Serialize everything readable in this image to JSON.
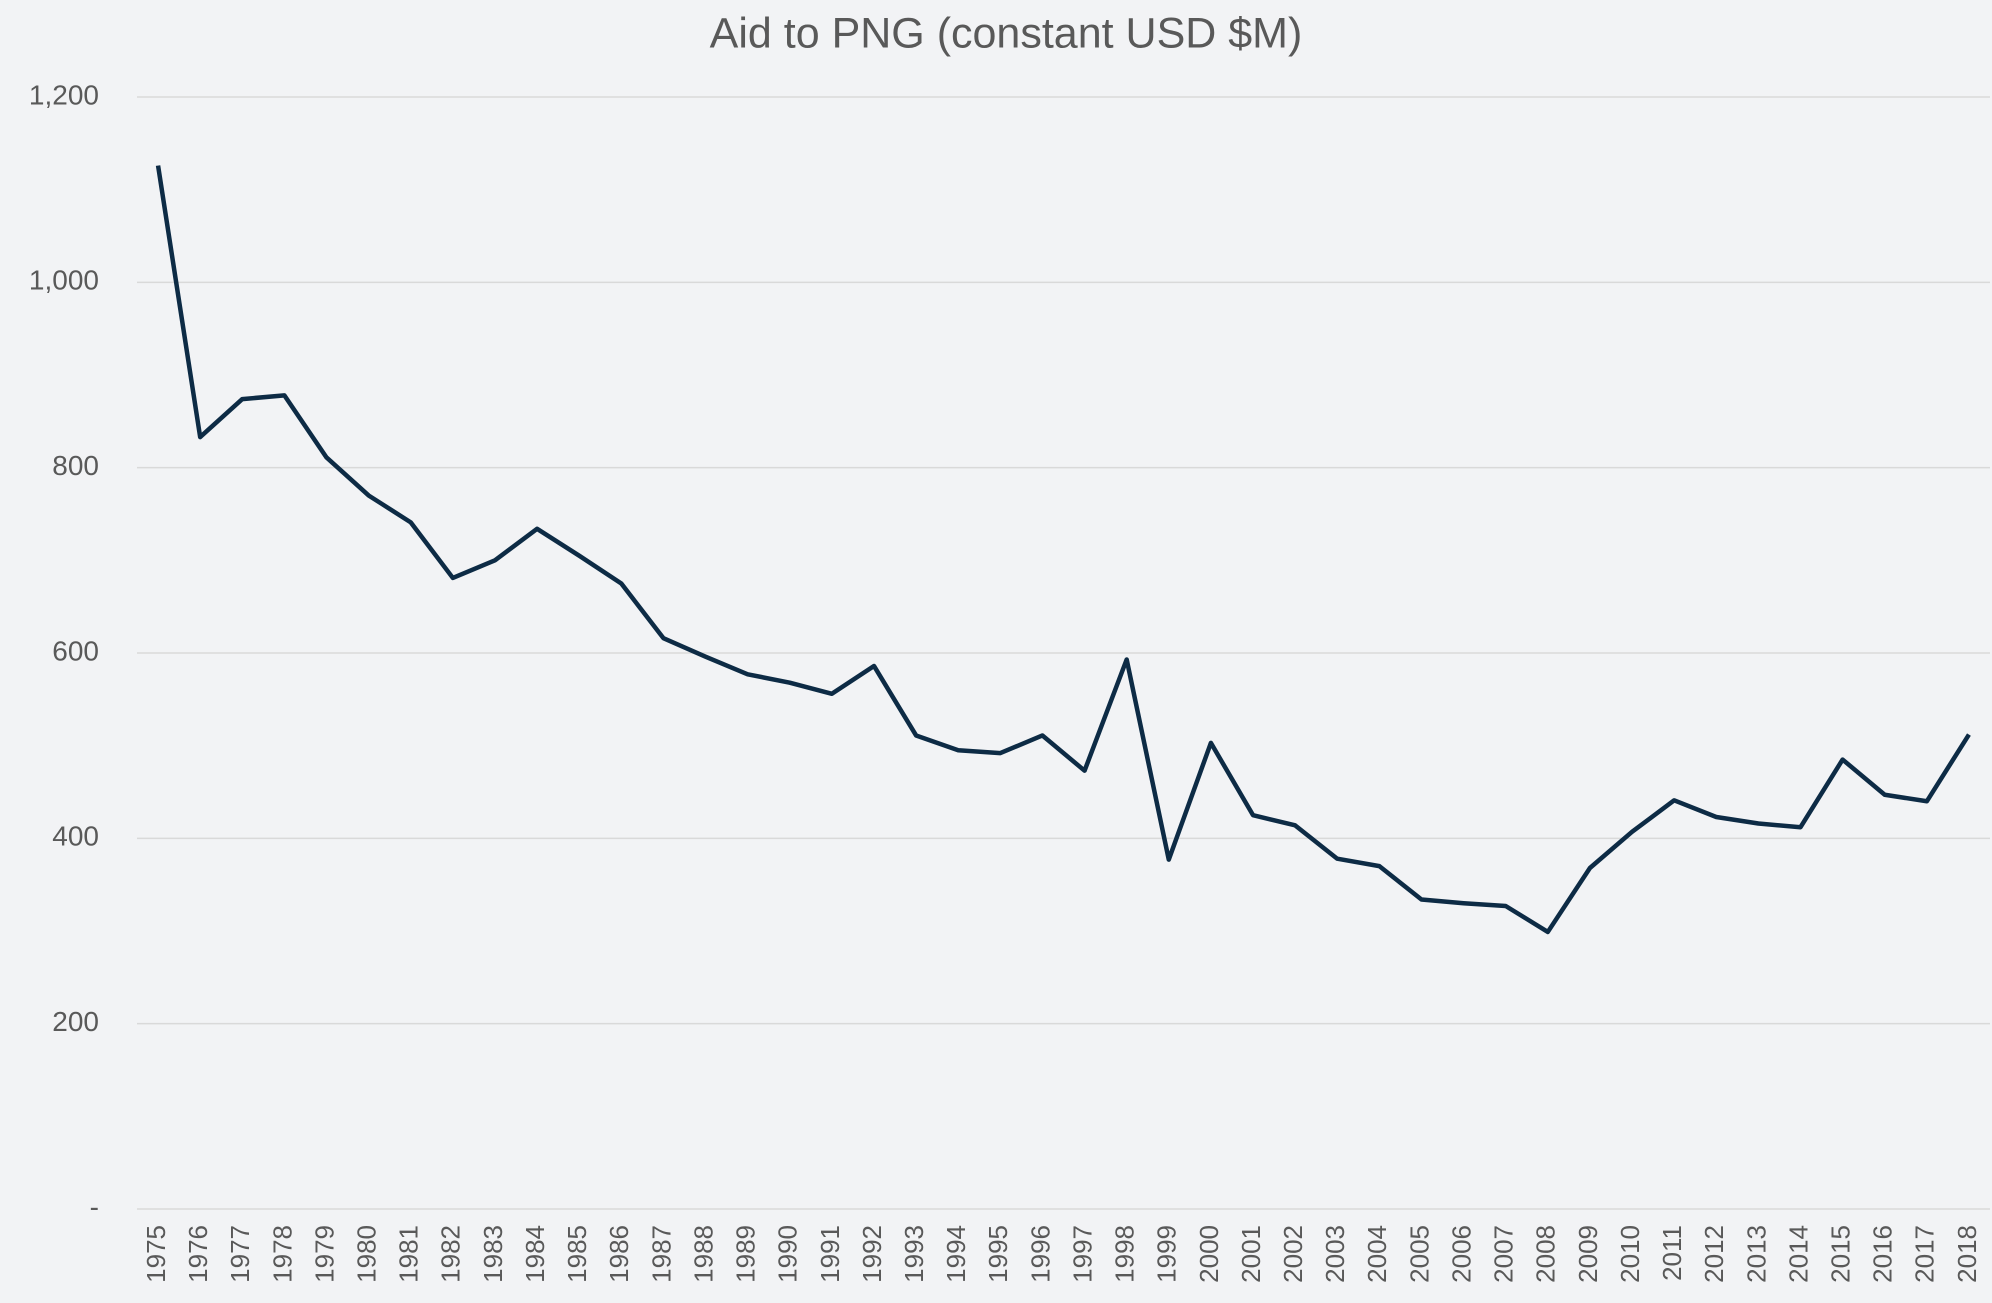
{
  "chart_data": {
    "type": "line",
    "title": "Aid to PNG (constant USD $M)",
    "categories": [
      "1975",
      "1976",
      "1977",
      "1978",
      "1979",
      "1980",
      "1981",
      "1982",
      "1983",
      "1984",
      "1985",
      "1986",
      "1987",
      "1988",
      "1989",
      "1990",
      "1991",
      "1992",
      "1993",
      "1994",
      "1995",
      "1996",
      "1997",
      "1998",
      "1999",
      "2000",
      "2001",
      "2002",
      "2003",
      "2004",
      "2005",
      "2006",
      "2007",
      "2008",
      "2009",
      "2010",
      "2011",
      "2012",
      "2013",
      "2014",
      "2015",
      "2016",
      "2017",
      "2018"
    ],
    "series": [
      {
        "color": "#0d2b45",
        "values": [
          1126,
          833,
          874,
          878,
          811,
          770,
          741,
          681,
          700,
          734,
          705,
          675,
          616,
          596,
          577,
          568,
          556,
          586,
          511,
          495,
          492,
          511,
          473,
          593,
          377,
          503,
          425,
          414,
          378,
          370,
          334,
          330,
          327,
          299,
          368,
          407,
          441,
          423,
          416,
          412,
          485,
          447,
          440,
          512
        ]
      }
    ],
    "ylim": [
      0,
      1200
    ],
    "yticks": [
      {
        "value": 0,
        "label": "-"
      },
      200,
      400,
      600,
      800,
      {
        "value": 1000,
        "label": "1,000"
      },
      {
        "value": 1200,
        "label": "1,200"
      }
    ],
    "grid": true
  }
}
